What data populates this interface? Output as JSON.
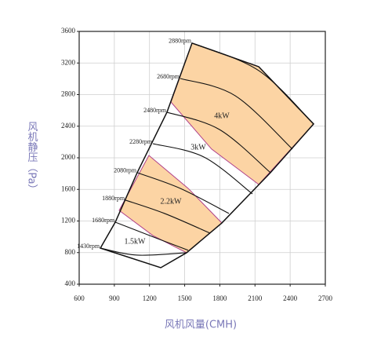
{
  "chart_data": {
    "type": "line",
    "xlabel": "风机风量(CMH)",
    "ylabel": "风机静压（Pa）",
    "xlim": [
      600,
      2700
    ],
    "xticks": [
      600,
      900,
      1200,
      1500,
      1800,
      2100,
      2400,
      2700
    ],
    "ylim": [
      400,
      3600
    ],
    "yticks": [
      400,
      800,
      1200,
      1600,
      2000,
      2400,
      2800,
      3200,
      3600
    ],
    "grid": true,
    "zones": [
      {
        "name": "1.5kW"
      },
      {
        "name": "2.2kW",
        "color": "#fcd4a4",
        "x": [
          941,
          1195,
          1530,
          1817,
          1516,
          1229
        ],
        "y": [
          1334,
          2030,
          1613,
          1175,
          798,
          1016
        ]
      },
      {
        "name": "3kW"
      },
      {
        "name": "4kW",
        "color": "#fcd4a4",
        "x": [
          1383,
          1563,
          2132,
          2600,
          2132,
          1730
        ],
        "y": [
          2706,
          3452,
          3153,
          2428,
          1662,
          2110
        ]
      }
    ],
    "boundary": {
      "x": [
        781,
        908,
        1095,
        1349,
        1563,
        2132,
        2600,
        2232,
        1817,
        1516,
        1296,
        781
      ],
      "y": [
        857,
        1185,
        1812,
        2577,
        3452,
        3153,
        2428,
        1812,
        1175,
        798,
        609,
        857
      ]
    },
    "series": [
      {
        "name": "1430rpm",
        "x": [
          781,
          1095,
          1516
        ],
        "y": [
          857,
          768,
          798
        ]
      },
      {
        "name": "1680rpm",
        "x": [
          908,
          1229,
          1530
        ],
        "y": [
          1185,
          1000,
          830
        ]
      },
      {
        "name": "1880rpm",
        "x": [
          995,
          1329,
          1717
        ],
        "y": [
          1464,
          1295,
          1046
        ]
      },
      {
        "name": "2080rpm",
        "x": [
          1095,
          1463,
          1878
        ],
        "y": [
          1812,
          1613,
          1295
        ]
      },
      {
        "name": "2280rpm",
        "x": [
          1229,
          1664,
          2078
        ],
        "y": [
          2179,
          2010,
          1543
        ]
      },
      {
        "name": "2480rpm",
        "x": [
          1349,
          1797,
          2232
        ],
        "y": [
          2577,
          2358,
          1812
        ]
      },
      {
        "name": "2680rpm",
        "x": [
          1463,
          1931,
          2419
        ],
        "y": [
          3004,
          2786,
          2110
        ]
      },
      {
        "name": "2880rpm",
        "x": [
          1563,
          2132,
          2600
        ],
        "y": [
          3452,
          3104,
          2428
        ]
      }
    ]
  }
}
